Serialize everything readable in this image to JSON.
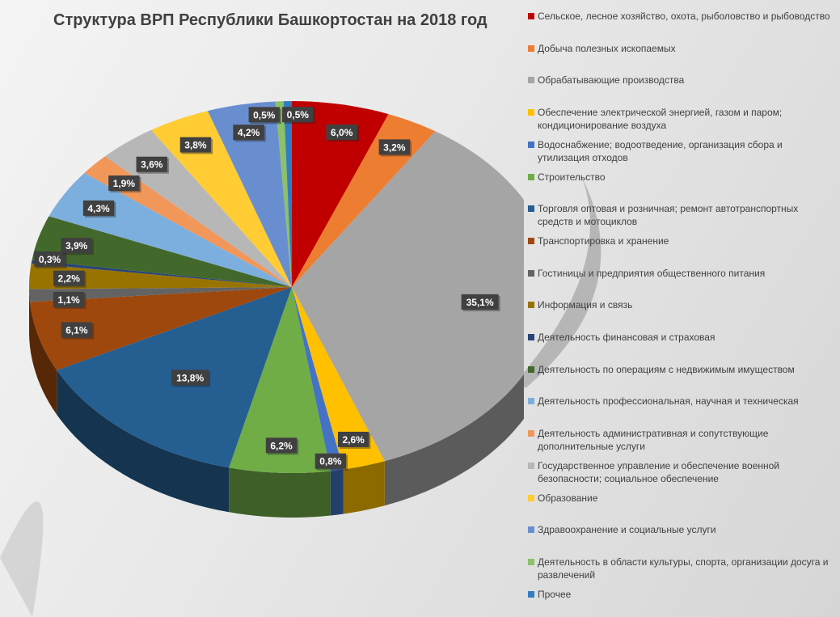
{
  "chart_data": {
    "type": "pie",
    "style": "3d",
    "title": "Структура ВРП Республики Башкортостан на 2018 год",
    "legend_position": "right",
    "start_angle_deg": 0,
    "direction": "clockwise",
    "slices": [
      {
        "name": "Сельское,  лесное хозяйство, охота, рыболовство и рыбоводство",
        "value": 6.0,
        "label": "6,0%",
        "color": "#C00000"
      },
      {
        "name": "Добыча полезных ископаемых",
        "value": 3.2,
        "label": "3,2%",
        "color": "#ED7D31"
      },
      {
        "name": "Обрабатывающие производства",
        "value": 35.1,
        "label": "35,1%",
        "color": "#A5A5A5"
      },
      {
        "name": "Обеспечение  электрической энергией, газом и паром; кондиционирование  воздуха",
        "value": 2.6,
        "label": "2,6%",
        "color": "#FFC000"
      },
      {
        "name": "Водоснабжение;  водоотведение,  организация сбора и утилизация отходов",
        "value": 0.8,
        "label": "0,8%",
        "color": "#4472C4"
      },
      {
        "name": "Строительство",
        "value": 6.2,
        "label": "6,2%",
        "color": "#70AD47"
      },
      {
        "name": "Торговля оптовая и розничная; ремонт автотранспортных средств и мотоциклов",
        "value": 13.8,
        "label": "13,8%",
        "color": "#255E91"
      },
      {
        "name": "Транспортировка и хранение",
        "value": 6.1,
        "label": "6,1%",
        "color": "#9E480E"
      },
      {
        "name": "Гостиницы и предприятия общественного  питания",
        "value": 1.1,
        "label": "1,1%",
        "color": "#636363"
      },
      {
        "name": "Информация и связь",
        "value": 2.2,
        "label": "2,2%",
        "color": "#997300"
      },
      {
        "name": "Деятельность  финансовая и страховая",
        "value": 0.3,
        "label": "0,3%",
        "color": "#264478"
      },
      {
        "name": "Деятельность  по операциям с недвижимым имуществом",
        "value": 3.9,
        "label": "3,9%",
        "color": "#43682B"
      },
      {
        "name": "Деятельность  профессиональная, научная и техническая",
        "value": 4.3,
        "label": "4,3%",
        "color": "#7CAFDD"
      },
      {
        "name": "Деятельность  административная и сопутствующие дополнительные  услуги",
        "value": 1.9,
        "label": "1,9%",
        "color": "#F1975A"
      },
      {
        "name": "Государственное управление и обеспечение военной  безопасности; социальное обеспечение",
        "value": 3.6,
        "label": "3,6%",
        "color": "#B7B7B7"
      },
      {
        "name": "Образование",
        "value": 3.8,
        "label": "3,8%",
        "color": "#FFCD33"
      },
      {
        "name": "Здравоохранение  и социальные услуги",
        "value": 4.2,
        "label": "4,2%",
        "color": "#698ED0"
      },
      {
        "name": "Деятельность  в области культуры, спорта, организации досуга и развлечений",
        "value": 0.5,
        "label": "0,5%",
        "color": "#8CC168"
      },
      {
        "name": "Прочее",
        "value": 0.5,
        "label": "0,5%",
        "color": "#327DC2"
      }
    ]
  }
}
